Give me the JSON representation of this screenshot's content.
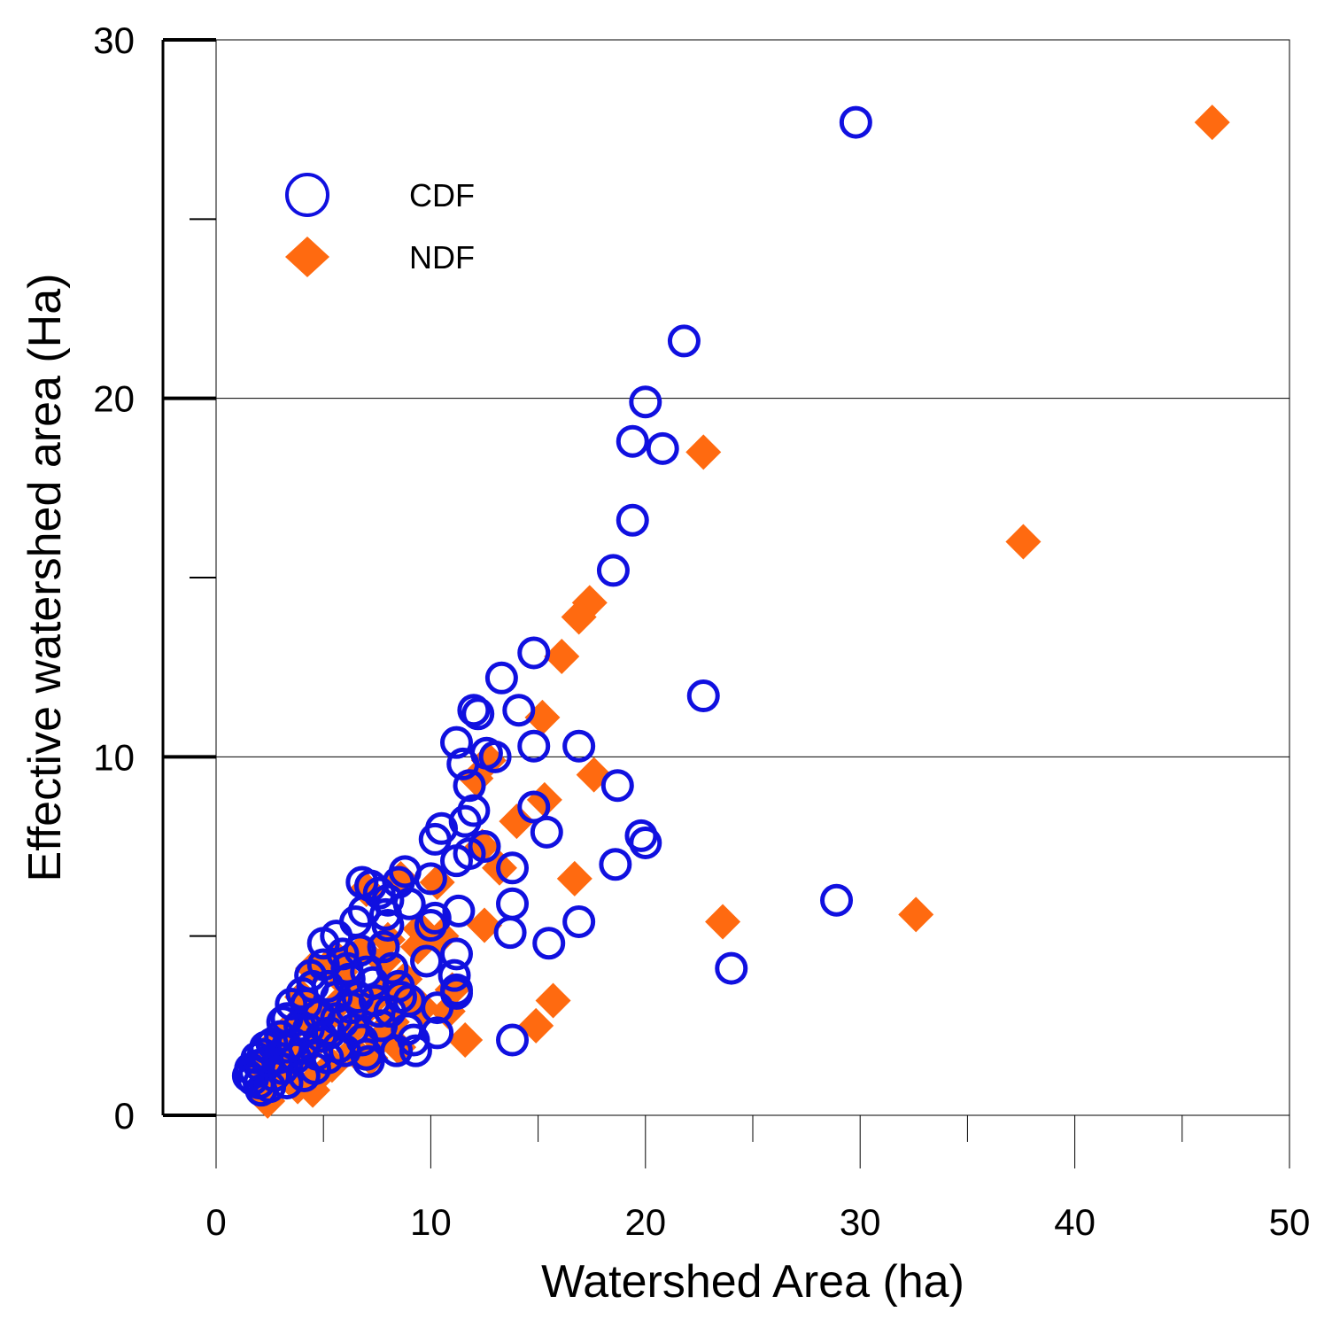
{
  "chart_data": {
    "type": "scatter",
    "title": "",
    "xlabel": "Watershed Area (ha)",
    "ylabel": "Effective watershed area (Ha)",
    "xlim": [
      0,
      50
    ],
    "ylim": [
      0,
      30
    ],
    "x_ticks": [
      "0",
      "10",
      "20",
      "30",
      "40",
      "50"
    ],
    "y_ticks": [
      "0",
      "10",
      "20",
      "30"
    ],
    "grid": "horizontal",
    "legend_position": "top-left",
    "colors": {
      "CDF": "#1010e0",
      "NDF": "#ff6a10"
    },
    "series": [
      {
        "name": "CDF",
        "marker": "open-circle",
        "points": [
          [
            29.8,
            27.7
          ],
          [
            21.8,
            21.6
          ],
          [
            20.0,
            19.9
          ],
          [
            19.4,
            18.8
          ],
          [
            20.8,
            18.6
          ],
          [
            19.4,
            16.6
          ],
          [
            18.5,
            15.2
          ],
          [
            14.8,
            12.9
          ],
          [
            13.3,
            12.2
          ],
          [
            14.1,
            11.3
          ],
          [
            12.0,
            11.3
          ],
          [
            12.2,
            11.2
          ],
          [
            22.7,
            11.7
          ],
          [
            11.2,
            10.4
          ],
          [
            14.8,
            10.3
          ],
          [
            16.9,
            10.3
          ],
          [
            12.6,
            10.1
          ],
          [
            13.0,
            10.0
          ],
          [
            11.5,
            9.8
          ],
          [
            11.8,
            9.2
          ],
          [
            18.7,
            9.2
          ],
          [
            12.0,
            8.5
          ],
          [
            14.8,
            8.6
          ],
          [
            11.6,
            8.2
          ],
          [
            10.5,
            8.0
          ],
          [
            10.2,
            7.7
          ],
          [
            15.4,
            7.9
          ],
          [
            19.8,
            7.8
          ],
          [
            20.0,
            7.6
          ],
          [
            12.5,
            7.5
          ],
          [
            11.8,
            7.3
          ],
          [
            11.2,
            7.1
          ],
          [
            13.8,
            6.9
          ],
          [
            18.6,
            7.0
          ],
          [
            8.8,
            6.8
          ],
          [
            10.0,
            6.6
          ],
          [
            8.5,
            6.5
          ],
          [
            6.8,
            6.5
          ],
          [
            7.2,
            6.4
          ],
          [
            7.6,
            6.2
          ],
          [
            8.0,
            6.0
          ],
          [
            13.8,
            5.9
          ],
          [
            28.9,
            6.0
          ],
          [
            11.3,
            5.7
          ],
          [
            10.2,
            5.5
          ],
          [
            6.5,
            5.4
          ],
          [
            8.0,
            5.3
          ],
          [
            10.0,
            5.3
          ],
          [
            16.9,
            5.4
          ],
          [
            5.6,
            5.0
          ],
          [
            13.7,
            5.1
          ],
          [
            15.5,
            4.8
          ],
          [
            7.8,
            4.7
          ],
          [
            6.7,
            4.6
          ],
          [
            5.9,
            4.5
          ],
          [
            11.2,
            4.5
          ],
          [
            9.8,
            4.3
          ],
          [
            5.0,
            4.2
          ],
          [
            7.0,
            4.0
          ],
          [
            11.1,
            3.9
          ],
          [
            24.0,
            4.1
          ],
          [
            6.2,
            3.8
          ],
          [
            4.5,
            3.6
          ],
          [
            8.5,
            3.6
          ],
          [
            11.2,
            3.5
          ],
          [
            4.0,
            3.4
          ],
          [
            5.6,
            3.3
          ],
          [
            7.4,
            3.2
          ],
          [
            9.0,
            3.2
          ],
          [
            11.2,
            3.4
          ],
          [
            3.5,
            3.1
          ],
          [
            6.3,
            3.0
          ],
          [
            8.1,
            2.9
          ],
          [
            4.8,
            2.8
          ],
          [
            10.3,
            3.0
          ],
          [
            3.3,
            2.7
          ],
          [
            5.9,
            2.6
          ],
          [
            7.7,
            2.5
          ],
          [
            4.3,
            2.4
          ],
          [
            8.9,
            2.4
          ],
          [
            3.0,
            2.2
          ],
          [
            5.3,
            2.3
          ],
          [
            6.8,
            2.1
          ],
          [
            10.3,
            2.3
          ],
          [
            13.8,
            2.1
          ],
          [
            2.6,
            2.0
          ],
          [
            4.1,
            1.9
          ],
          [
            6.0,
            1.8
          ],
          [
            8.4,
            1.8
          ],
          [
            9.3,
            1.8
          ],
          [
            2.2,
            1.7
          ],
          [
            3.7,
            1.6
          ],
          [
            5.2,
            1.6
          ],
          [
            7.1,
            1.5
          ],
          [
            2.0,
            1.4
          ],
          [
            3.1,
            1.3
          ],
          [
            4.6,
            1.3
          ],
          [
            1.8,
            1.2
          ],
          [
            2.7,
            1.1
          ],
          [
            4.1,
            1.1
          ],
          [
            2.0,
            0.9
          ],
          [
            3.3,
            0.9
          ],
          [
            2.5,
            0.8
          ],
          [
            2.1,
            0.7
          ],
          [
            1.7,
            1.0
          ],
          [
            1.6,
            1.3
          ],
          [
            2.9,
            1.6
          ],
          [
            3.6,
            2.0
          ],
          [
            4.9,
            2.2
          ],
          [
            5.6,
            2.7
          ],
          [
            6.6,
            3.3
          ],
          [
            7.3,
            3.7
          ],
          [
            8.2,
            4.1
          ],
          [
            6.1,
            4.1
          ],
          [
            5.2,
            3.6
          ],
          [
            4.2,
            3.1
          ],
          [
            3.9,
            2.5
          ],
          [
            2.4,
            1.5
          ],
          [
            3.3,
            1.9
          ],
          [
            4.7,
            1.7
          ],
          [
            6.4,
            2.4
          ],
          [
            7.6,
            2.9
          ],
          [
            8.6,
            3.3
          ],
          [
            9.2,
            2.1
          ],
          [
            7.0,
            1.7
          ],
          [
            5.7,
            1.9
          ],
          [
            6.9,
            5.7
          ],
          [
            7.9,
            5.6
          ],
          [
            9.0,
            5.9
          ],
          [
            5.0,
            4.8
          ],
          [
            4.4,
            3.9
          ],
          [
            3.1,
            2.6
          ],
          [
            2.3,
            1.9
          ],
          [
            1.9,
            1.6
          ],
          [
            1.5,
            1.1
          ]
        ]
      },
      {
        "name": "NDF",
        "marker": "filled-diamond",
        "points": [
          [
            46.4,
            27.7
          ],
          [
            37.6,
            16.0
          ],
          [
            22.7,
            18.5
          ],
          [
            17.4,
            14.3
          ],
          [
            16.9,
            13.9
          ],
          [
            16.1,
            12.8
          ],
          [
            15.2,
            11.1
          ],
          [
            12.7,
            9.9
          ],
          [
            17.6,
            9.5
          ],
          [
            12.1,
            9.4
          ],
          [
            15.3,
            8.8
          ],
          [
            14.0,
            8.2
          ],
          [
            12.4,
            7.5
          ],
          [
            13.2,
            6.9
          ],
          [
            16.7,
            6.6
          ],
          [
            10.3,
            6.5
          ],
          [
            8.6,
            6.6
          ],
          [
            7.0,
            6.3
          ],
          [
            32.6,
            5.6
          ],
          [
            23.6,
            5.4
          ],
          [
            12.5,
            5.3
          ],
          [
            9.5,
            5.2
          ],
          [
            10.5,
            5.0
          ],
          [
            8.0,
            4.9
          ],
          [
            6.8,
            4.6
          ],
          [
            5.6,
            4.4
          ],
          [
            4.5,
            4.1
          ],
          [
            8.8,
            3.8
          ],
          [
            6.0,
            3.7
          ],
          [
            11.0,
            3.5
          ],
          [
            9.0,
            3.3
          ],
          [
            7.3,
            3.2
          ],
          [
            5.5,
            3.0
          ],
          [
            4.6,
            2.8
          ],
          [
            15.7,
            3.2
          ],
          [
            10.8,
            2.9
          ],
          [
            3.8,
            2.6
          ],
          [
            6.5,
            2.5
          ],
          [
            8.2,
            2.6
          ],
          [
            14.9,
            2.5
          ],
          [
            3.2,
            2.3
          ],
          [
            5.1,
            2.2
          ],
          [
            7.6,
            2.1
          ],
          [
            11.6,
            2.1
          ],
          [
            2.7,
            2.0
          ],
          [
            4.4,
            1.9
          ],
          [
            6.4,
            1.8
          ],
          [
            8.5,
            1.9
          ],
          [
            2.3,
            1.6
          ],
          [
            3.7,
            1.5
          ],
          [
            5.4,
            1.4
          ],
          [
            7.2,
            1.6
          ],
          [
            2.0,
            1.3
          ],
          [
            3.1,
            1.2
          ],
          [
            4.6,
            1.0
          ],
          [
            2.5,
            0.9
          ],
          [
            3.8,
            0.8
          ],
          [
            2.2,
            0.6
          ],
          [
            4.5,
            0.7
          ],
          [
            2.4,
            0.4
          ],
          [
            5.8,
            4.0
          ],
          [
            7.8,
            4.3
          ],
          [
            9.4,
            4.7
          ],
          [
            6.2,
            3.4
          ],
          [
            4.0,
            3.3
          ],
          [
            3.4,
            1.8
          ],
          [
            5.0,
            2.6
          ],
          [
            6.9,
            2.9
          ],
          [
            8.0,
            3.5
          ],
          [
            9.6,
            3.0
          ]
        ]
      }
    ]
  }
}
